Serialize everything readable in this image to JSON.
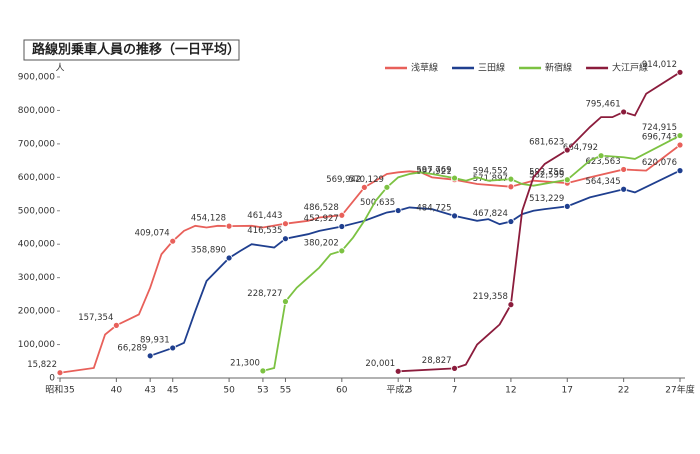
{
  "chart_data": {
    "type": "line",
    "title": "路線別乗車人員の推移（一日平均）",
    "y_label": "人",
    "xlim": [
      35,
      90
    ],
    "xticks": [
      {
        "value": 35,
        "label": "昭和35"
      },
      40,
      43,
      45,
      50,
      53,
      55,
      60,
      {
        "value": 65,
        "label": "平成2"
      },
      {
        "value": 66,
        "label": "3"
      },
      {
        "value": 70,
        "label": "7"
      },
      {
        "value": 75,
        "label": "12"
      },
      {
        "value": 80,
        "label": "17"
      },
      {
        "value": 85,
        "label": "22"
      },
      {
        "value": 90,
        "label": "27年度"
      }
    ],
    "ylim": [
      0,
      900000
    ],
    "yticks": [
      0,
      {
        "value": 100000,
        "label": "100,000"
      },
      {
        "value": 200000,
        "label": "200,000"
      },
      {
        "value": 300000,
        "label": "300,000"
      },
      {
        "value": 400000,
        "label": "400,000"
      },
      {
        "value": 500000,
        "label": "500,000"
      },
      {
        "value": 600000,
        "label": "600,000"
      },
      {
        "value": 700000,
        "label": "700,000"
      },
      {
        "value": 800000,
        "label": "800,000"
      },
      {
        "value": 900000,
        "label": "900,000"
      }
    ],
    "legend": "top-right",
    "series": [
      {
        "name": "浅草線",
        "color": "#e8605a",
        "x": [
          35,
          38,
          39,
          40,
          42,
          43,
          44,
          45,
          46,
          47,
          48,
          49,
          50,
          52,
          53,
          55,
          57,
          58,
          60,
          62,
          64,
          65,
          66,
          67,
          68,
          70,
          72,
          75,
          77,
          80,
          82,
          85,
          87,
          90
        ],
        "values": [
          15822,
          30000,
          130000,
          157354,
          190000,
          270000,
          370000,
          409074,
          440000,
          455000,
          450000,
          455000,
          454128,
          455000,
          450000,
          461443,
          470000,
          480000,
          486528,
          569942,
          610000,
          615000,
          618000,
          615000,
          600000,
          592921,
          580000,
          571897,
          590000,
          582599,
          600000,
          623563,
          620000,
          696743
        ],
        "value_labels": [
          "15,822",
          null,
          null,
          "157,354",
          null,
          null,
          null,
          "409,074",
          null,
          null,
          null,
          null,
          "454,128",
          null,
          null,
          "461,443",
          null,
          null,
          "486,528",
          "569,942",
          null,
          null,
          null,
          null,
          null,
          "592,921",
          null,
          "571,897",
          null,
          "582,599",
          null,
          "623,563",
          null,
          "696,743"
        ]
      },
      {
        "name": "三田線",
        "color": "#1f3f8f",
        "x": [
          43,
          45,
          46,
          47,
          48,
          50,
          51,
          52,
          53,
          54,
          55,
          57,
          58,
          60,
          62,
          64,
          65,
          66,
          68,
          70,
          72,
          73,
          74,
          75,
          76,
          77,
          78,
          80,
          82,
          85,
          86,
          90
        ],
        "values": [
          66289,
          89931,
          105000,
          200000,
          290000,
          358890,
          380000,
          400000,
          395000,
          390000,
          416535,
          430000,
          440000,
          452927,
          470000,
          495000,
          500635,
          510000,
          505000,
          484725,
          470000,
          475000,
          460000,
          467824,
          490000,
          500000,
          505000,
          513229,
          540000,
          564345,
          555000,
          620076
        ],
        "value_labels": [
          "66,289",
          "89,931",
          null,
          null,
          null,
          "358,890",
          null,
          null,
          null,
          null,
          "416,535",
          null,
          null,
          "452,927",
          null,
          null,
          "500,635",
          null,
          null,
          "484,725",
          null,
          null,
          null,
          "467,824",
          null,
          null,
          null,
          "513,229",
          null,
          "564,345",
          null,
          "620,076"
        ]
      },
      {
        "name": "新宿線",
        "color": "#7cc242",
        "x": [
          53,
          54,
          55,
          56,
          57,
          58,
          59,
          60,
          61,
          62,
          63,
          64,
          65,
          66,
          67,
          68,
          70,
          71,
          72,
          73,
          75,
          76,
          77,
          80,
          82,
          83,
          85,
          86,
          90
        ],
        "values": [
          21300,
          30000,
          228727,
          270000,
          300000,
          330000,
          370000,
          380202,
          420000,
          470000,
          530000,
          570129,
          600000,
          610000,
          615000,
          610000,
          597769,
          590000,
          600000,
          590000,
          594552,
          580000,
          575000,
          592756,
          650000,
          664792,
          660000,
          655000,
          724915
        ],
        "value_labels": [
          "21,300",
          null,
          "228,727",
          null,
          null,
          null,
          null,
          "380,202",
          null,
          null,
          null,
          "570,129",
          null,
          null,
          null,
          null,
          "597,769",
          null,
          null,
          null,
          "594,552",
          null,
          null,
          "592,756",
          null,
          "664,792",
          null,
          null,
          "724,915"
        ]
      },
      {
        "name": "大江戸線",
        "color": "#8b1c3c",
        "x": [
          65,
          70,
          71,
          72,
          73,
          74,
          75,
          76,
          77,
          78,
          80,
          82,
          83,
          84,
          85,
          86,
          87,
          90
        ],
        "values": [
          20001,
          28827,
          40000,
          100000,
          130000,
          160000,
          219358,
          500000,
          600000,
          640000,
          681623,
          750000,
          780000,
          780000,
          795461,
          785000,
          850000,
          914012
        ],
        "value_labels": [
          "20,001",
          "28,827",
          null,
          null,
          null,
          null,
          "219,358",
          null,
          null,
          null,
          "681,623",
          null,
          null,
          null,
          "795,461",
          null,
          null,
          "914,012"
        ]
      }
    ]
  }
}
